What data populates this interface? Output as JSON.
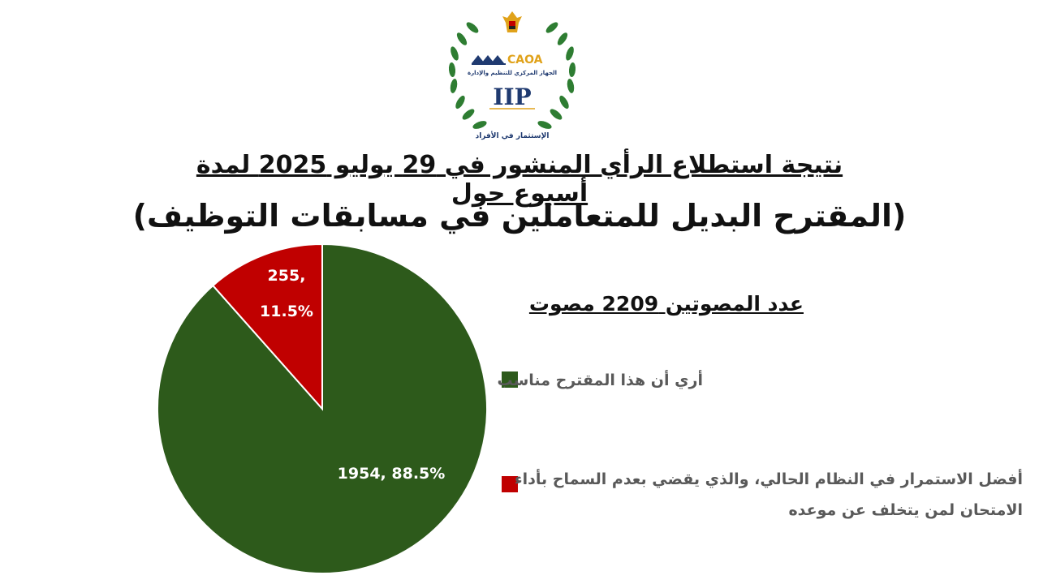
{
  "logo": {
    "org_abbrev": "CAOA",
    "org_name": "الجهاز المركزي للتنظيم والإدارة",
    "program": "IIP",
    "tagline": "الإستثمار في الأفراد",
    "colors": {
      "wreath": "#2e7d32",
      "navy": "#1f3a70",
      "gold": "#e0a21a"
    }
  },
  "chart_data": {
    "type": "pie",
    "title": "نتيجة استطلاع الرأي المنشور في 29 يوليو 2025 لمدة أسبوع حول",
    "subtitle_main": "(المقترح البديل للمتعاملين في مسابقات التوظيف)",
    "voters_caption": "عدد المصوتين 2209 مصوت",
    "categories": [
      "أري أن هذا المقترح مناسب",
      "أفضل الاستمرار في النظام الحالي، والذي يقضي بعدم السماح بأداء الامتحان لمن يتخلف عن موعده"
    ],
    "values": [
      1954,
      255
    ],
    "percentages": [
      "88.5%",
      "11.5%"
    ],
    "data_labels": [
      "1954, 88.5%",
      "255, 11.5%"
    ],
    "colors": [
      "#2d5a1b",
      "#c00000"
    ],
    "legend_position": "right"
  }
}
